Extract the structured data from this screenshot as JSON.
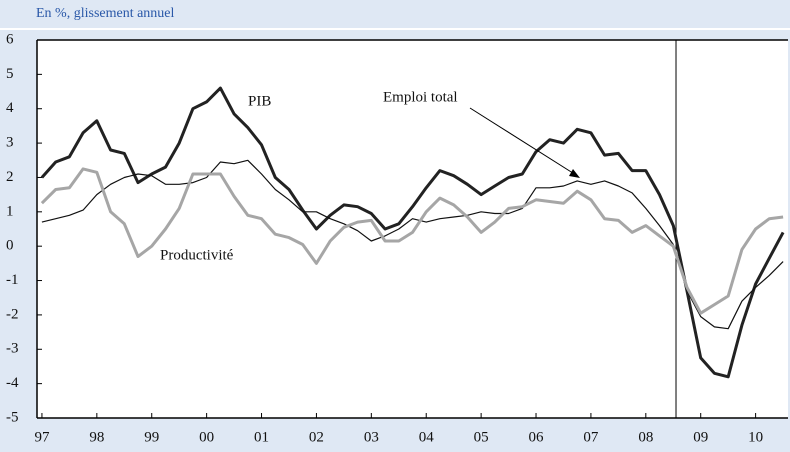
{
  "chart_data": {
    "type": "line",
    "title": "En %, glissement annuel",
    "x": [
      1997,
      1997.25,
      1997.5,
      1997.75,
      1998,
      1998.25,
      1998.5,
      1998.75,
      1999,
      1999.25,
      1999.5,
      1999.75,
      2000,
      2000.25,
      2000.5,
      2000.75,
      2001,
      2001.25,
      2001.5,
      2001.75,
      2002,
      2002.25,
      2002.5,
      2002.75,
      2003,
      2003.25,
      2003.5,
      2003.75,
      2004,
      2004.25,
      2004.5,
      2004.75,
      2005,
      2005.25,
      2005.5,
      2005.75,
      2006,
      2006.25,
      2006.5,
      2006.75,
      2007,
      2007.25,
      2007.5,
      2007.75,
      2008,
      2008.25,
      2008.5,
      2008.75,
      2009,
      2009.25,
      2009.5,
      2009.75,
      2010,
      2010.25,
      2010.5
    ],
    "series": [
      {
        "name": "PIB",
        "color": "#222222",
        "width": 3,
        "values": [
          2.0,
          2.45,
          2.6,
          3.3,
          3.65,
          2.8,
          2.7,
          1.85,
          2.1,
          2.3,
          3.0,
          4.0,
          4.2,
          4.6,
          3.85,
          3.45,
          2.95,
          2.0,
          1.65,
          1.05,
          0.5,
          0.9,
          1.2,
          1.15,
          0.95,
          0.5,
          0.65,
          1.15,
          1.7,
          2.2,
          2.05,
          1.8,
          1.5,
          1.75,
          2.0,
          2.1,
          2.75,
          3.1,
          3.0,
          3.4,
          3.3,
          2.65,
          2.7,
          2.2,
          2.2,
          1.5,
          0.6,
          -1.3,
          -3.25,
          -3.7,
          -3.8,
          -2.3,
          -1.1,
          -0.35,
          0.4
        ]
      },
      {
        "name": "Emploi total",
        "color": "#111111",
        "width": 1.2,
        "values": [
          0.7,
          0.8,
          0.9,
          1.05,
          1.5,
          1.8,
          2.0,
          2.1,
          2.05,
          1.8,
          1.8,
          1.85,
          2.0,
          2.45,
          2.4,
          2.5,
          2.1,
          1.65,
          1.35,
          1.0,
          1.0,
          0.8,
          0.65,
          0.45,
          0.15,
          0.3,
          0.5,
          0.8,
          0.7,
          0.8,
          0.85,
          0.9,
          1.0,
          0.95,
          0.95,
          1.1,
          1.7,
          1.7,
          1.75,
          1.9,
          1.8,
          1.9,
          1.75,
          1.55,
          1.1,
          0.6,
          0.05,
          -1.3,
          -2.05,
          -2.35,
          -2.4,
          -1.6,
          -1.2,
          -0.85,
          -0.45
        ]
      },
      {
        "name": "Productivité",
        "color": "#a6a6a6",
        "width": 3,
        "values": [
          1.25,
          1.65,
          1.7,
          2.25,
          2.15,
          1.0,
          0.65,
          -0.3,
          0.0,
          0.5,
          1.1,
          2.1,
          2.1,
          2.1,
          1.45,
          0.9,
          0.8,
          0.35,
          0.25,
          0.05,
          -0.5,
          0.15,
          0.55,
          0.7,
          0.75,
          0.15,
          0.15,
          0.4,
          1.0,
          1.4,
          1.2,
          0.85,
          0.4,
          0.7,
          1.1,
          1.15,
          1.35,
          1.3,
          1.25,
          1.6,
          1.35,
          0.8,
          0.75,
          0.4,
          0.6,
          0.3,
          0.0,
          -1.2,
          -1.95,
          -1.7,
          -1.45,
          -0.1,
          0.5,
          0.8,
          0.85
        ]
      }
    ],
    "xlim": [
      1996.91,
      2010.59
    ],
    "xticks": [
      {
        "value": 1997,
        "label": "97"
      },
      {
        "value": 1998,
        "label": "98"
      },
      {
        "value": 1999,
        "label": "99"
      },
      {
        "value": 2000,
        "label": "00"
      },
      {
        "value": 2001,
        "label": "01"
      },
      {
        "value": 2002,
        "label": "02"
      },
      {
        "value": 2003,
        "label": "03"
      },
      {
        "value": 2004,
        "label": "04"
      },
      {
        "value": 2005,
        "label": "05"
      },
      {
        "value": 2006,
        "label": "06"
      },
      {
        "value": 2007,
        "label": "07"
      },
      {
        "value": 2008,
        "label": "08"
      },
      {
        "value": 2009,
        "label": "09"
      },
      {
        "value": 2010,
        "label": "10"
      }
    ],
    "ylim": [
      -5,
      6
    ],
    "yticks": [
      6,
      5,
      4,
      3,
      2,
      1,
      0,
      -1,
      -2,
      -3,
      -4,
      -5
    ],
    "vline": 2008.55,
    "grid": false
  }
}
